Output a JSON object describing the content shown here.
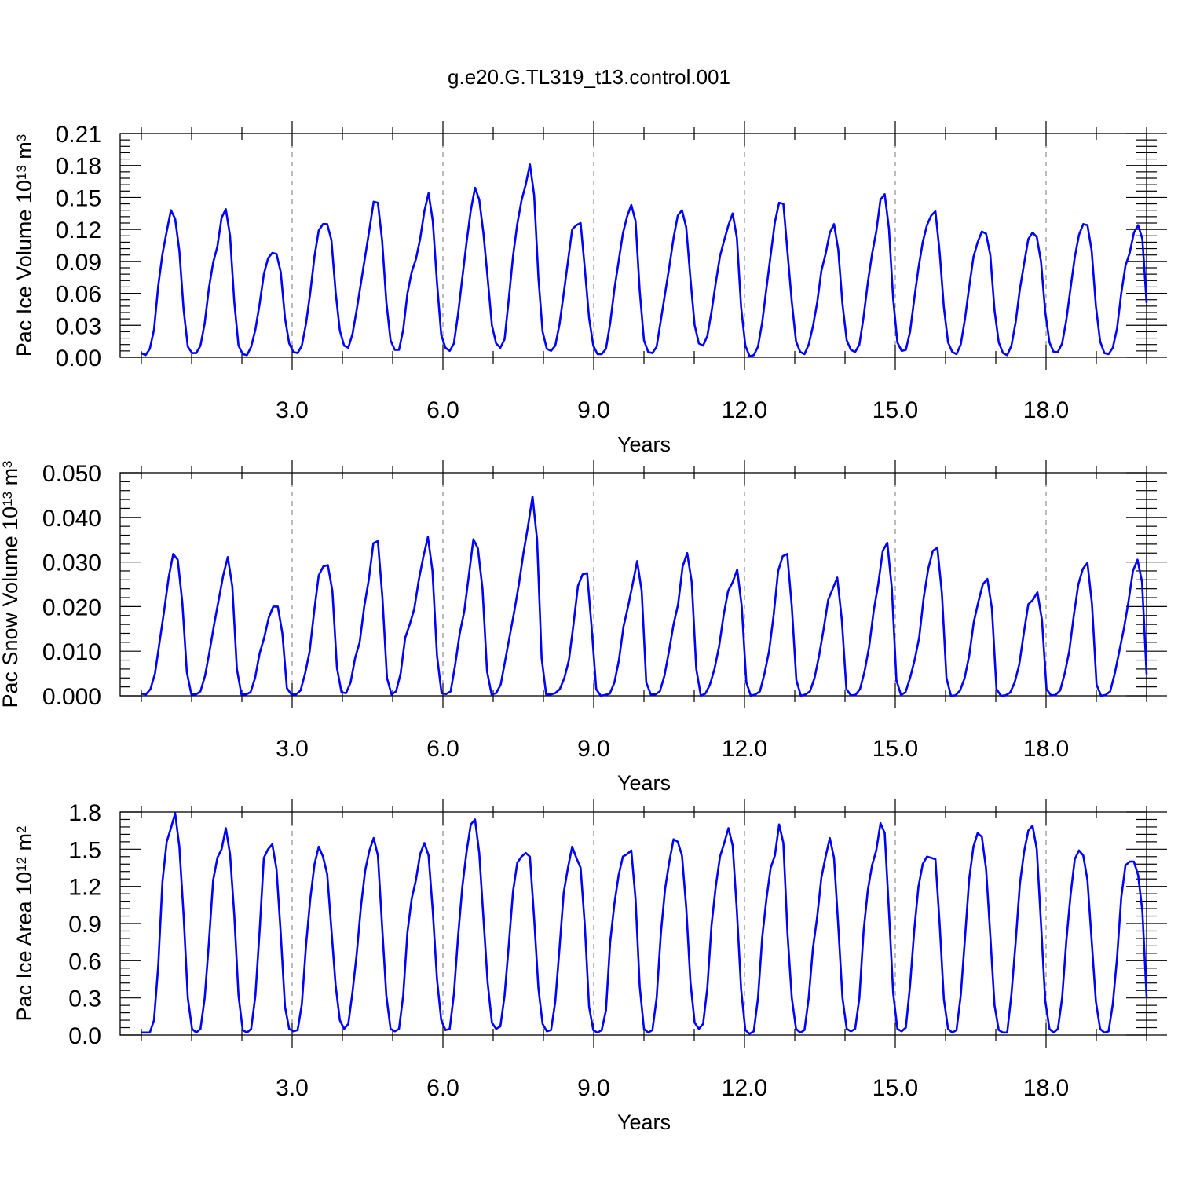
{
  "figure": {
    "title": "g.e20.G.TL319_t13.control.001",
    "series_color": "#0000ff"
  },
  "chart_data": [
    {
      "type": "line",
      "ylabel": "Pac Ice Volume 10",
      "ylabel_exp": "13",
      "ylabel_unit": " m",
      "ylabel_unit_exp": "3",
      "xlabel": "Years",
      "xlim": [
        0.0,
        20.0
      ],
      "ylim": [
        0.0,
        0.21
      ],
      "xticks": [
        3.0,
        6.0,
        9.0,
        12.0,
        15.0,
        18.0
      ],
      "xtick_labels": [
        "3.0",
        "6.0",
        "9.0",
        "12.0",
        "15.0",
        "18.0"
      ],
      "yticks": [
        0.0,
        0.03,
        0.06,
        0.09,
        0.12,
        0.15,
        0.18,
        0.21
      ],
      "ytick_labels": [
        "0.00",
        "0.03",
        "0.06",
        "0.09",
        "0.12",
        "0.15",
        "0.18",
        "0.21"
      ],
      "grid_x": true,
      "series": [
        {
          "values": [
            0.004,
            0.002,
            0.008,
            0.026,
            0.067,
            0.097,
            0.118,
            0.138,
            0.13,
            0.1,
            0.045,
            0.01,
            0.004,
            0.004,
            0.011,
            0.032,
            0.065,
            0.089,
            0.104,
            0.131,
            0.139,
            0.114,
            0.052,
            0.011,
            0.003,
            0.002,
            0.01,
            0.026,
            0.05,
            0.078,
            0.093,
            0.098,
            0.097,
            0.08,
            0.037,
            0.013,
            0.005,
            0.004,
            0.011,
            0.032,
            0.061,
            0.095,
            0.119,
            0.125,
            0.125,
            0.11,
            0.061,
            0.025,
            0.011,
            0.009,
            0.022,
            0.045,
            0.07,
            0.095,
            0.12,
            0.146,
            0.145,
            0.11,
            0.052,
            0.016,
            0.007,
            0.007,
            0.026,
            0.06,
            0.08,
            0.092,
            0.111,
            0.137,
            0.154,
            0.128,
            0.07,
            0.021,
            0.009,
            0.006,
            0.013,
            0.041,
            0.075,
            0.108,
            0.138,
            0.159,
            0.148,
            0.116,
            0.074,
            0.03,
            0.013,
            0.009,
            0.017,
            0.055,
            0.095,
            0.125,
            0.147,
            0.162,
            0.181,
            0.152,
            0.075,
            0.024,
            0.008,
            0.006,
            0.011,
            0.031,
            0.06,
            0.09,
            0.12,
            0.124,
            0.126,
            0.083,
            0.037,
            0.011,
            0.003,
            0.003,
            0.008,
            0.032,
            0.064,
            0.09,
            0.116,
            0.132,
            0.143,
            0.128,
            0.062,
            0.016,
            0.005,
            0.004,
            0.01,
            0.035,
            0.06,
            0.085,
            0.112,
            0.133,
            0.138,
            0.122,
            0.074,
            0.03,
            0.013,
            0.011,
            0.02,
            0.043,
            0.07,
            0.095,
            0.11,
            0.124,
            0.135,
            0.112,
            0.047,
            0.011,
            0.001,
            0.002,
            0.01,
            0.033,
            0.065,
            0.096,
            0.127,
            0.145,
            0.144,
            0.098,
            0.052,
            0.015,
            0.005,
            0.003,
            0.012,
            0.029,
            0.051,
            0.081,
            0.097,
            0.117,
            0.125,
            0.101,
            0.05,
            0.016,
            0.007,
            0.005,
            0.012,
            0.038,
            0.07,
            0.097,
            0.118,
            0.148,
            0.153,
            0.121,
            0.055,
            0.014,
            0.006,
            0.007,
            0.024,
            0.055,
            0.084,
            0.108,
            0.124,
            0.133,
            0.137,
            0.099,
            0.047,
            0.014,
            0.005,
            0.003,
            0.012,
            0.036,
            0.066,
            0.094,
            0.108,
            0.118,
            0.116,
            0.096,
            0.044,
            0.014,
            0.004,
            0.002,
            0.011,
            0.033,
            0.064,
            0.088,
            0.111,
            0.117,
            0.113,
            0.09,
            0.043,
            0.014,
            0.005,
            0.005,
            0.013,
            0.035,
            0.065,
            0.094,
            0.115,
            0.125,
            0.124,
            0.1,
            0.048,
            0.015,
            0.004,
            0.003,
            0.009,
            0.027,
            0.06,
            0.086,
            0.098,
            0.117,
            0.124,
            0.111,
            0.051
          ]
        }
      ]
    },
    {
      "type": "line",
      "ylabel": "Pac Snow Volume 10",
      "ylabel_exp": "13",
      "ylabel_unit": " m",
      "ylabel_unit_exp": "3",
      "xlabel": "Years",
      "xlim": [
        0.0,
        20.0
      ],
      "ylim": [
        0.0,
        0.05
      ],
      "xticks": [
        3.0,
        6.0,
        9.0,
        12.0,
        15.0,
        18.0
      ],
      "xtick_labels": [
        "3.0",
        "6.0",
        "9.0",
        "12.0",
        "15.0",
        "18.0"
      ],
      "yticks": [
        0.0,
        0.01,
        0.02,
        0.03,
        0.04,
        0.05
      ],
      "ytick_labels": [
        "0.000",
        "0.010",
        "0.020",
        "0.030",
        "0.040",
        "0.050"
      ],
      "grid_x": true,
      "series": [
        {
          "values": [
            0.0005,
            0.0003,
            0.0015,
            0.005,
            0.012,
            0.019,
            0.0265,
            0.0318,
            0.0305,
            0.021,
            0.0053,
            0.0003,
            0.0003,
            0.001,
            0.0045,
            0.01,
            0.016,
            0.0215,
            0.027,
            0.0311,
            0.0245,
            0.006,
            0.0003,
            0.0003,
            0.0008,
            0.004,
            0.0095,
            0.013,
            0.0175,
            0.02,
            0.02,
            0.014,
            0.0017,
            0.0003,
            0.0003,
            0.0012,
            0.005,
            0.01,
            0.019,
            0.027,
            0.029,
            0.0293,
            0.0235,
            0.0063,
            0.0008,
            0.0006,
            0.003,
            0.0085,
            0.012,
            0.02,
            0.026,
            0.0342,
            0.0347,
            0.022,
            0.004,
            0.0003,
            0.001,
            0.005,
            0.013,
            0.016,
            0.0195,
            0.026,
            0.0312,
            0.0356,
            0.028,
            0.009,
            0.0006,
            0.0004,
            0.001,
            0.007,
            0.014,
            0.019,
            0.027,
            0.0351,
            0.033,
            0.024,
            0.0055,
            0.0003,
            0.0006,
            0.0025,
            0.008,
            0.0135,
            0.019,
            0.025,
            0.032,
            0.038,
            0.0447,
            0.035,
            0.0085,
            0.0003,
            0.0003,
            0.0006,
            0.0015,
            0.004,
            0.008,
            0.016,
            0.0247,
            0.0272,
            0.0275,
            0.0153,
            0.0015,
            0.0,
            0.0002,
            0.0005,
            0.003,
            0.008,
            0.0155,
            0.02,
            0.025,
            0.0302,
            0.0235,
            0.003,
            0.0003,
            0.0003,
            0.001,
            0.0045,
            0.01,
            0.016,
            0.0205,
            0.029,
            0.032,
            0.0255,
            0.006,
            0.0,
            0.0005,
            0.0025,
            0.006,
            0.011,
            0.018,
            0.0235,
            0.0255,
            0.0283,
            0.02,
            0.003,
            0.0,
            0.0003,
            0.001,
            0.005,
            0.01,
            0.018,
            0.028,
            0.0313,
            0.0318,
            0.02,
            0.0035,
            0.0,
            0.0003,
            0.001,
            0.004,
            0.009,
            0.015,
            0.0215,
            0.024,
            0.0265,
            0.017,
            0.0015,
            0.0001,
            0.0002,
            0.0015,
            0.0055,
            0.011,
            0.019,
            0.025,
            0.0325,
            0.0343,
            0.024,
            0.0035,
            0.0002,
            0.0008,
            0.004,
            0.008,
            0.013,
            0.022,
            0.0285,
            0.0325,
            0.0332,
            0.023,
            0.004,
            0.0,
            0.0001,
            0.0012,
            0.004,
            0.009,
            0.0165,
            0.021,
            0.025,
            0.0262,
            0.0195,
            0.0015,
            0.0,
            0.0001,
            0.0007,
            0.003,
            0.007,
            0.014,
            0.0205,
            0.0215,
            0.0232,
            0.017,
            0.0015,
            0.0001,
            0.0002,
            0.0012,
            0.005,
            0.01,
            0.018,
            0.025,
            0.0285,
            0.0298,
            0.0205,
            0.0025,
            0.0,
            0.0002,
            0.001,
            0.005,
            0.01,
            0.015,
            0.021,
            0.028,
            0.0305,
            0.0255,
            0.0048
          ]
        }
      ]
    },
    {
      "type": "line",
      "ylabel": "Pac Ice Area 10",
      "ylabel_exp": "12",
      "ylabel_unit": " m",
      "ylabel_unit_exp": "2",
      "xlabel": "Years",
      "xlim": [
        0.0,
        20.0
      ],
      "ylim": [
        0.0,
        1.8
      ],
      "xticks": [
        3.0,
        6.0,
        9.0,
        12.0,
        15.0,
        18.0
      ],
      "xtick_labels": [
        "3.0",
        "6.0",
        "9.0",
        "12.0",
        "15.0",
        "18.0"
      ],
      "yticks": [
        0.0,
        0.3,
        0.6,
        0.9,
        1.2,
        1.5,
        1.8
      ],
      "ytick_labels": [
        "0.0",
        "0.3",
        "0.6",
        "0.9",
        "1.2",
        "1.5",
        "1.8"
      ],
      "grid_x": true,
      "series": [
        {
          "values": [
            0.02,
            0.02,
            0.02,
            0.12,
            0.56,
            1.24,
            1.56,
            1.67,
            1.79,
            1.52,
            0.97,
            0.3,
            0.05,
            0.02,
            0.05,
            0.3,
            0.75,
            1.25,
            1.43,
            1.5,
            1.67,
            1.46,
            0.97,
            0.32,
            0.04,
            0.02,
            0.05,
            0.32,
            0.84,
            1.43,
            1.5,
            1.54,
            1.34,
            0.82,
            0.23,
            0.05,
            0.03,
            0.04,
            0.25,
            0.73,
            1.1,
            1.38,
            1.52,
            1.44,
            1.3,
            0.85,
            0.4,
            0.12,
            0.05,
            0.09,
            0.35,
            0.66,
            1.04,
            1.33,
            1.49,
            1.59,
            1.45,
            0.88,
            0.32,
            0.05,
            0.03,
            0.05,
            0.32,
            0.83,
            1.1,
            1.25,
            1.46,
            1.55,
            1.45,
            1.0,
            0.45,
            0.12,
            0.04,
            0.05,
            0.33,
            0.8,
            1.2,
            1.48,
            1.7,
            1.74,
            1.47,
            0.94,
            0.42,
            0.1,
            0.05,
            0.07,
            0.32,
            0.73,
            1.16,
            1.39,
            1.44,
            1.47,
            1.44,
            0.94,
            0.38,
            0.09,
            0.03,
            0.04,
            0.27,
            0.7,
            1.15,
            1.35,
            1.52,
            1.43,
            1.35,
            0.88,
            0.23,
            0.04,
            0.02,
            0.04,
            0.2,
            0.75,
            1.06,
            1.29,
            1.44,
            1.46,
            1.49,
            1.1,
            0.39,
            0.05,
            0.02,
            0.04,
            0.3,
            0.82,
            1.18,
            1.4,
            1.58,
            1.56,
            1.45,
            1.03,
            0.43,
            0.1,
            0.05,
            0.09,
            0.38,
            0.89,
            1.2,
            1.44,
            1.55,
            1.67,
            1.53,
            1.0,
            0.37,
            0.04,
            0.01,
            0.03,
            0.3,
            0.79,
            1.1,
            1.35,
            1.45,
            1.7,
            1.55,
            0.81,
            0.3,
            0.05,
            0.02,
            0.04,
            0.3,
            0.7,
            0.95,
            1.27,
            1.44,
            1.59,
            1.43,
            0.88,
            0.3,
            0.05,
            0.03,
            0.05,
            0.3,
            0.84,
            1.17,
            1.37,
            1.49,
            1.71,
            1.63,
            1.0,
            0.34,
            0.05,
            0.03,
            0.06,
            0.4,
            0.85,
            1.2,
            1.38,
            1.44,
            1.43,
            1.42,
            0.9,
            0.29,
            0.05,
            0.02,
            0.04,
            0.32,
            0.78,
            1.26,
            1.52,
            1.63,
            1.6,
            1.34,
            0.8,
            0.24,
            0.04,
            0.02,
            0.02,
            0.33,
            0.75,
            1.22,
            1.48,
            1.65,
            1.69,
            1.5,
            0.9,
            0.28,
            0.05,
            0.02,
            0.05,
            0.3,
            0.76,
            1.13,
            1.42,
            1.49,
            1.45,
            1.25,
            0.76,
            0.27,
            0.05,
            0.02,
            0.03,
            0.25,
            0.62,
            1.11,
            1.37,
            1.4,
            1.4,
            1.29,
            1.0,
            0.31
          ]
        }
      ]
    }
  ]
}
